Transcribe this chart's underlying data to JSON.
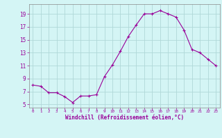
{
  "x": [
    0,
    1,
    2,
    3,
    4,
    5,
    6,
    7,
    8,
    9,
    10,
    11,
    12,
    13,
    14,
    15,
    16,
    17,
    18,
    19,
    20,
    21,
    22,
    23
  ],
  "y": [
    8.0,
    7.8,
    6.8,
    6.8,
    6.2,
    5.3,
    6.3,
    6.3,
    6.5,
    9.3,
    11.1,
    13.2,
    15.5,
    17.3,
    19.0,
    19.0,
    19.5,
    19.0,
    18.5,
    16.5,
    13.5,
    13.0,
    12.0,
    11.0
  ],
  "line_color": "#990099",
  "marker": "+",
  "marker_size": 3.5,
  "bg_color": "#d4f5f5",
  "grid_color": "#b0d8d8",
  "xlabel": "Windchill (Refroidissement éolien,°C)",
  "xlabel_color": "#990099",
  "tick_color": "#990099",
  "ylim": [
    4.5,
    20.5
  ],
  "yticks": [
    5,
    7,
    9,
    11,
    13,
    15,
    17,
    19
  ],
  "xlim": [
    -0.5,
    23.5
  ],
  "xticks": [
    0,
    1,
    2,
    3,
    4,
    5,
    6,
    7,
    8,
    9,
    10,
    11,
    12,
    13,
    14,
    15,
    16,
    17,
    18,
    19,
    20,
    21,
    22,
    23
  ]
}
